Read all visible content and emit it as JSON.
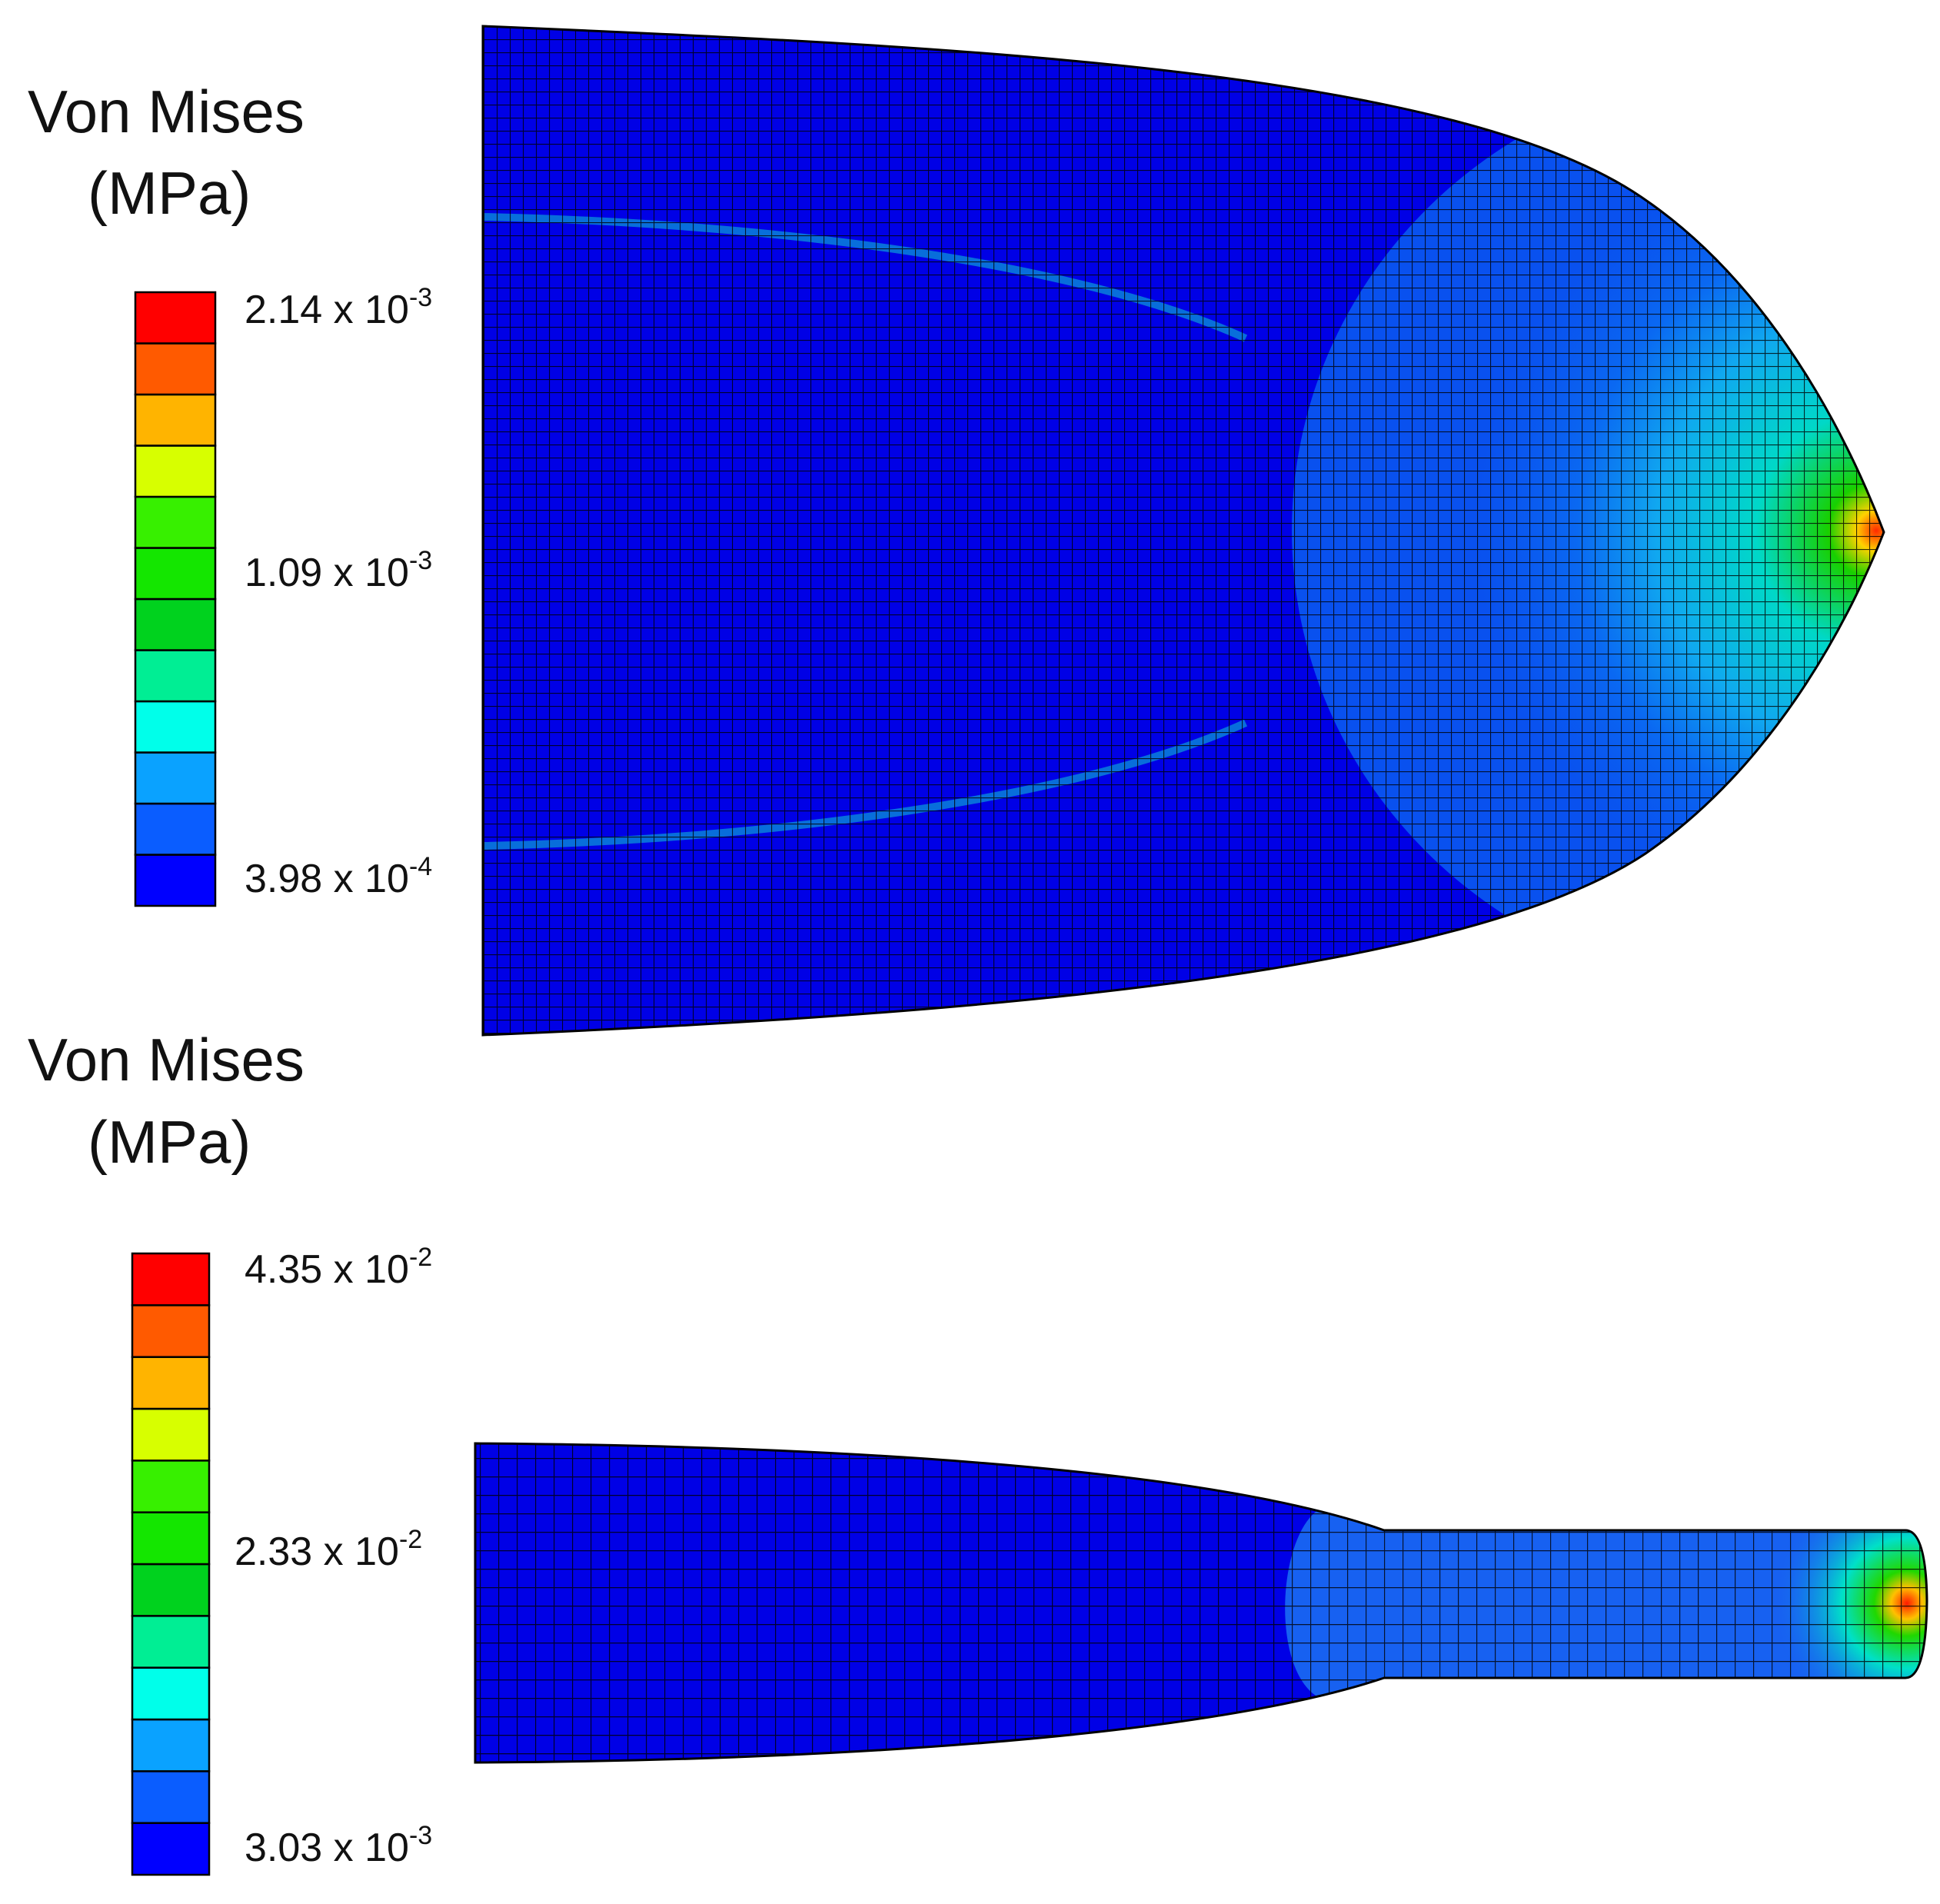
{
  "legends": [
    {
      "title_line1": "Von Mises",
      "title_line2": "(MPa)",
      "colors": [
        "#0000ff",
        "#0a5dff",
        "#0aa2ff",
        "#00ffea",
        "#00ee94",
        "#00d21e",
        "#14e600",
        "#37f000",
        "#d7ff00",
        "#ffb400",
        "#ff5a00",
        "#ff0000"
      ],
      "labels": [
        {
          "mantissa": "2.14 x 10",
          "exponent": "-3"
        },
        {
          "mantissa": "1.09 x 10",
          "exponent": "-3"
        },
        {
          "mantissa": "3.98 x 10",
          "exponent": "-4"
        }
      ]
    },
    {
      "title_line1": "Von Mises",
      "title_line2": "(MPa)",
      "colors": [
        "#0000ff",
        "#0a5dff",
        "#0aa2ff",
        "#00ffea",
        "#00ee94",
        "#00d21e",
        "#14e600",
        "#37f000",
        "#d7ff00",
        "#ffb400",
        "#ff5a00",
        "#ff0000"
      ],
      "labels": [
        {
          "mantissa": "4.35 x 10",
          "exponent": "-2"
        },
        {
          "mantissa": "2.33 x 10",
          "exponent": "-2"
        },
        {
          "mantissa": "3.03 x 10",
          "exponent": "-3"
        }
      ]
    }
  ],
  "models": {
    "top": {
      "shape": "ogive",
      "base_color": "#0000e6",
      "mid_color": "#0b5ff0",
      "hot_color": "#ff3000"
    },
    "bottom": {
      "shape": "tapered-bar",
      "base_color": "#0000e6",
      "mid_color": "#1a6cf2",
      "hot_color": "#ff2000"
    }
  }
}
